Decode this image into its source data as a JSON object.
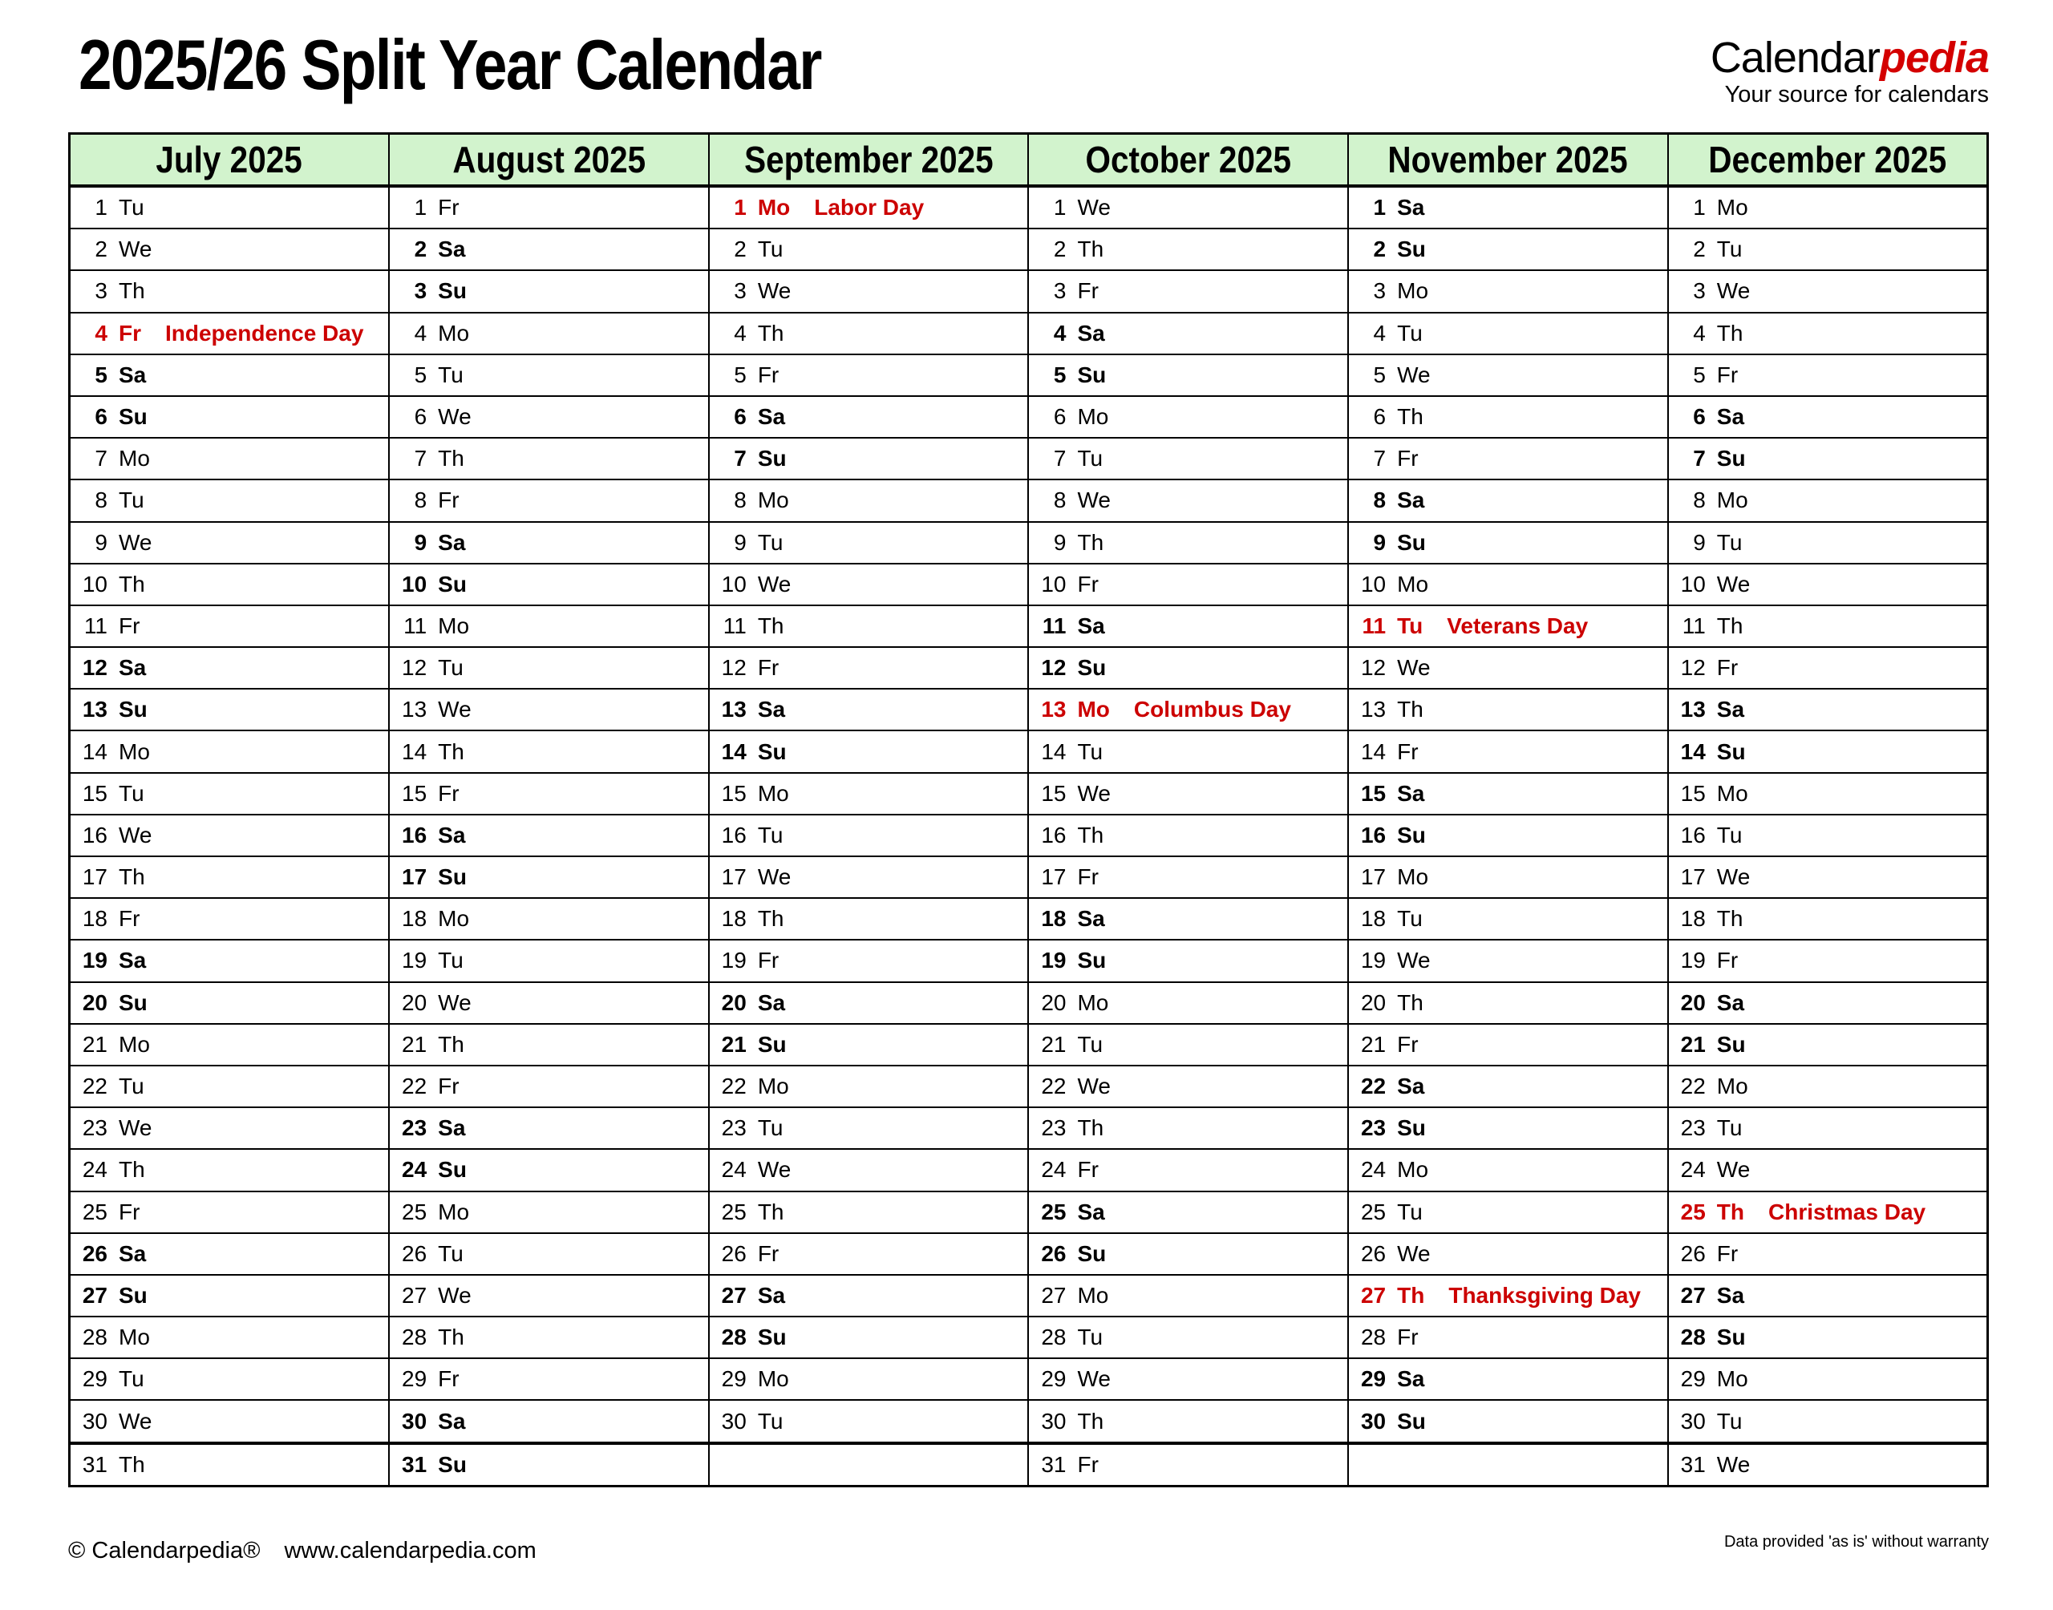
{
  "title": "2025/26 Split Year Calendar",
  "logo": {
    "brand_black": "Calendar",
    "brand_red": "pedia",
    "tagline": "Your source for calendars"
  },
  "footer": {
    "copyright": "© Calendarpedia®",
    "url": "www.calendarpedia.com",
    "disclaimer": "Data provided 'as is' without warranty"
  },
  "colors": {
    "header_bg": "#d2f3cd",
    "saturday_bg": "#ffffcc",
    "sunday_bg": "#fbc88c",
    "holiday_bg": "#f9cfd2",
    "holiday_text": "#cc0000",
    "blank_bg": "#e6e6e6",
    "brand_red": "#d40000",
    "border": "#000000"
  },
  "months": [
    {
      "name": "July 2025",
      "days": [
        {
          "d": 1,
          "w": "Tu"
        },
        {
          "d": 2,
          "w": "We"
        },
        {
          "d": 3,
          "w": "Th"
        },
        {
          "d": 4,
          "w": "Fr",
          "holiday": "Independence Day"
        },
        {
          "d": 5,
          "w": "Sa"
        },
        {
          "d": 6,
          "w": "Su"
        },
        {
          "d": 7,
          "w": "Mo"
        },
        {
          "d": 8,
          "w": "Tu"
        },
        {
          "d": 9,
          "w": "We"
        },
        {
          "d": 10,
          "w": "Th"
        },
        {
          "d": 11,
          "w": "Fr"
        },
        {
          "d": 12,
          "w": "Sa"
        },
        {
          "d": 13,
          "w": "Su"
        },
        {
          "d": 14,
          "w": "Mo"
        },
        {
          "d": 15,
          "w": "Tu"
        },
        {
          "d": 16,
          "w": "We"
        },
        {
          "d": 17,
          "w": "Th"
        },
        {
          "d": 18,
          "w": "Fr"
        },
        {
          "d": 19,
          "w": "Sa"
        },
        {
          "d": 20,
          "w": "Su"
        },
        {
          "d": 21,
          "w": "Mo"
        },
        {
          "d": 22,
          "w": "Tu"
        },
        {
          "d": 23,
          "w": "We"
        },
        {
          "d": 24,
          "w": "Th"
        },
        {
          "d": 25,
          "w": "Fr"
        },
        {
          "d": 26,
          "w": "Sa"
        },
        {
          "d": 27,
          "w": "Su"
        },
        {
          "d": 28,
          "w": "Mo"
        },
        {
          "d": 29,
          "w": "Tu"
        },
        {
          "d": 30,
          "w": "We"
        },
        {
          "d": 31,
          "w": "Th"
        }
      ]
    },
    {
      "name": "August 2025",
      "days": [
        {
          "d": 1,
          "w": "Fr"
        },
        {
          "d": 2,
          "w": "Sa"
        },
        {
          "d": 3,
          "w": "Su"
        },
        {
          "d": 4,
          "w": "Mo"
        },
        {
          "d": 5,
          "w": "Tu"
        },
        {
          "d": 6,
          "w": "We"
        },
        {
          "d": 7,
          "w": "Th"
        },
        {
          "d": 8,
          "w": "Fr"
        },
        {
          "d": 9,
          "w": "Sa"
        },
        {
          "d": 10,
          "w": "Su"
        },
        {
          "d": 11,
          "w": "Mo"
        },
        {
          "d": 12,
          "w": "Tu"
        },
        {
          "d": 13,
          "w": "We"
        },
        {
          "d": 14,
          "w": "Th"
        },
        {
          "d": 15,
          "w": "Fr"
        },
        {
          "d": 16,
          "w": "Sa"
        },
        {
          "d": 17,
          "w": "Su"
        },
        {
          "d": 18,
          "w": "Mo"
        },
        {
          "d": 19,
          "w": "Tu"
        },
        {
          "d": 20,
          "w": "We"
        },
        {
          "d": 21,
          "w": "Th"
        },
        {
          "d": 22,
          "w": "Fr"
        },
        {
          "d": 23,
          "w": "Sa"
        },
        {
          "d": 24,
          "w": "Su"
        },
        {
          "d": 25,
          "w": "Mo"
        },
        {
          "d": 26,
          "w": "Tu"
        },
        {
          "d": 27,
          "w": "We"
        },
        {
          "d": 28,
          "w": "Th"
        },
        {
          "d": 29,
          "w": "Fr"
        },
        {
          "d": 30,
          "w": "Sa"
        },
        {
          "d": 31,
          "w": "Su"
        }
      ]
    },
    {
      "name": "September 2025",
      "days": [
        {
          "d": 1,
          "w": "Mo",
          "holiday": "Labor Day"
        },
        {
          "d": 2,
          "w": "Tu"
        },
        {
          "d": 3,
          "w": "We"
        },
        {
          "d": 4,
          "w": "Th"
        },
        {
          "d": 5,
          "w": "Fr"
        },
        {
          "d": 6,
          "w": "Sa"
        },
        {
          "d": 7,
          "w": "Su"
        },
        {
          "d": 8,
          "w": "Mo"
        },
        {
          "d": 9,
          "w": "Tu"
        },
        {
          "d": 10,
          "w": "We"
        },
        {
          "d": 11,
          "w": "Th"
        },
        {
          "d": 12,
          "w": "Fr"
        },
        {
          "d": 13,
          "w": "Sa"
        },
        {
          "d": 14,
          "w": "Su"
        },
        {
          "d": 15,
          "w": "Mo"
        },
        {
          "d": 16,
          "w": "Tu"
        },
        {
          "d": 17,
          "w": "We"
        },
        {
          "d": 18,
          "w": "Th"
        },
        {
          "d": 19,
          "w": "Fr"
        },
        {
          "d": 20,
          "w": "Sa"
        },
        {
          "d": 21,
          "w": "Su"
        },
        {
          "d": 22,
          "w": "Mo"
        },
        {
          "d": 23,
          "w": "Tu"
        },
        {
          "d": 24,
          "w": "We"
        },
        {
          "d": 25,
          "w": "Th"
        },
        {
          "d": 26,
          "w": "Fr"
        },
        {
          "d": 27,
          "w": "Sa"
        },
        {
          "d": 28,
          "w": "Su"
        },
        {
          "d": 29,
          "w": "Mo"
        },
        {
          "d": 30,
          "w": "Tu"
        },
        null
      ]
    },
    {
      "name": "October 2025",
      "days": [
        {
          "d": 1,
          "w": "We"
        },
        {
          "d": 2,
          "w": "Th"
        },
        {
          "d": 3,
          "w": "Fr"
        },
        {
          "d": 4,
          "w": "Sa"
        },
        {
          "d": 5,
          "w": "Su"
        },
        {
          "d": 6,
          "w": "Mo"
        },
        {
          "d": 7,
          "w": "Tu"
        },
        {
          "d": 8,
          "w": "We"
        },
        {
          "d": 9,
          "w": "Th"
        },
        {
          "d": 10,
          "w": "Fr"
        },
        {
          "d": 11,
          "w": "Sa"
        },
        {
          "d": 12,
          "w": "Su"
        },
        {
          "d": 13,
          "w": "Mo",
          "holiday": "Columbus Day"
        },
        {
          "d": 14,
          "w": "Tu"
        },
        {
          "d": 15,
          "w": "We"
        },
        {
          "d": 16,
          "w": "Th"
        },
        {
          "d": 17,
          "w": "Fr"
        },
        {
          "d": 18,
          "w": "Sa"
        },
        {
          "d": 19,
          "w": "Su"
        },
        {
          "d": 20,
          "w": "Mo"
        },
        {
          "d": 21,
          "w": "Tu"
        },
        {
          "d": 22,
          "w": "We"
        },
        {
          "d": 23,
          "w": "Th"
        },
        {
          "d": 24,
          "w": "Fr"
        },
        {
          "d": 25,
          "w": "Sa"
        },
        {
          "d": 26,
          "w": "Su"
        },
        {
          "d": 27,
          "w": "Mo"
        },
        {
          "d": 28,
          "w": "Tu"
        },
        {
          "d": 29,
          "w": "We"
        },
        {
          "d": 30,
          "w": "Th"
        },
        {
          "d": 31,
          "w": "Fr"
        }
      ]
    },
    {
      "name": "November 2025",
      "days": [
        {
          "d": 1,
          "w": "Sa"
        },
        {
          "d": 2,
          "w": "Su"
        },
        {
          "d": 3,
          "w": "Mo"
        },
        {
          "d": 4,
          "w": "Tu"
        },
        {
          "d": 5,
          "w": "We"
        },
        {
          "d": 6,
          "w": "Th"
        },
        {
          "d": 7,
          "w": "Fr"
        },
        {
          "d": 8,
          "w": "Sa"
        },
        {
          "d": 9,
          "w": "Su"
        },
        {
          "d": 10,
          "w": "Mo"
        },
        {
          "d": 11,
          "w": "Tu",
          "holiday": "Veterans Day"
        },
        {
          "d": 12,
          "w": "We"
        },
        {
          "d": 13,
          "w": "Th"
        },
        {
          "d": 14,
          "w": "Fr"
        },
        {
          "d": 15,
          "w": "Sa"
        },
        {
          "d": 16,
          "w": "Su"
        },
        {
          "d": 17,
          "w": "Mo"
        },
        {
          "d": 18,
          "w": "Tu"
        },
        {
          "d": 19,
          "w": "We"
        },
        {
          "d": 20,
          "w": "Th"
        },
        {
          "d": 21,
          "w": "Fr"
        },
        {
          "d": 22,
          "w": "Sa"
        },
        {
          "d": 23,
          "w": "Su"
        },
        {
          "d": 24,
          "w": "Mo"
        },
        {
          "d": 25,
          "w": "Tu"
        },
        {
          "d": 26,
          "w": "We"
        },
        {
          "d": 27,
          "w": "Th",
          "holiday": "Thanksgiving Day"
        },
        {
          "d": 28,
          "w": "Fr"
        },
        {
          "d": 29,
          "w": "Sa"
        },
        {
          "d": 30,
          "w": "Su"
        },
        null
      ]
    },
    {
      "name": "December 2025",
      "days": [
        {
          "d": 1,
          "w": "Mo"
        },
        {
          "d": 2,
          "w": "Tu"
        },
        {
          "d": 3,
          "w": "We"
        },
        {
          "d": 4,
          "w": "Th"
        },
        {
          "d": 5,
          "w": "Fr"
        },
        {
          "d": 6,
          "w": "Sa"
        },
        {
          "d": 7,
          "w": "Su"
        },
        {
          "d": 8,
          "w": "Mo"
        },
        {
          "d": 9,
          "w": "Tu"
        },
        {
          "d": 10,
          "w": "We"
        },
        {
          "d": 11,
          "w": "Th"
        },
        {
          "d": 12,
          "w": "Fr"
        },
        {
          "d": 13,
          "w": "Sa"
        },
        {
          "d": 14,
          "w": "Su"
        },
        {
          "d": 15,
          "w": "Mo"
        },
        {
          "d": 16,
          "w": "Tu"
        },
        {
          "d": 17,
          "w": "We"
        },
        {
          "d": 18,
          "w": "Th"
        },
        {
          "d": 19,
          "w": "Fr"
        },
        {
          "d": 20,
          "w": "Sa"
        },
        {
          "d": 21,
          "w": "Su"
        },
        {
          "d": 22,
          "w": "Mo"
        },
        {
          "d": 23,
          "w": "Tu"
        },
        {
          "d": 24,
          "w": "We"
        },
        {
          "d": 25,
          "w": "Th",
          "holiday": "Christmas Day"
        },
        {
          "d": 26,
          "w": "Fr"
        },
        {
          "d": 27,
          "w": "Sa"
        },
        {
          "d": 28,
          "w": "Su"
        },
        {
          "d": 29,
          "w": "Mo"
        },
        {
          "d": 30,
          "w": "Tu"
        },
        {
          "d": 31,
          "w": "We"
        }
      ]
    }
  ]
}
